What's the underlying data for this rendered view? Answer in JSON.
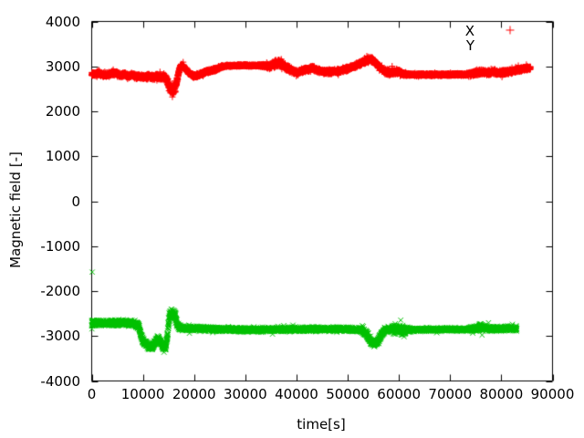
{
  "chart_data": {
    "type": "scatter",
    "title": "",
    "xlabel": "time[s]",
    "ylabel": "Magnetic field [-]",
    "xlim": [
      0,
      90000
    ],
    "ylim": [
      -4000,
      4000
    ],
    "x_ticks": [
      0,
      10000,
      20000,
      30000,
      40000,
      50000,
      60000,
      70000,
      80000,
      90000
    ],
    "y_ticks": [
      -4000,
      -3000,
      -2000,
      -1000,
      0,
      1000,
      2000,
      3000,
      4000
    ],
    "grid": false,
    "legend_position": "top-right",
    "axis_color": "#000000",
    "text_color": "#000000",
    "background_color": "#ffffff",
    "sample_interval_s": 15,
    "series": [
      {
        "name": "X",
        "marker": "plus",
        "color": "#ff0000",
        "legend_sample_visible": true,
        "t_start": 0,
        "t_end": 85700,
        "trend": [
          [
            0,
            2815
          ],
          [
            1200,
            2845
          ],
          [
            2500,
            2805
          ],
          [
            3600,
            2840
          ],
          [
            4800,
            2850
          ],
          [
            5600,
            2800
          ],
          [
            6400,
            2820
          ],
          [
            7200,
            2780
          ],
          [
            8000,
            2810
          ],
          [
            8800,
            2770
          ],
          [
            9600,
            2775
          ],
          [
            10400,
            2760
          ],
          [
            11200,
            2780
          ],
          [
            12000,
            2755
          ],
          [
            12800,
            2775
          ],
          [
            13600,
            2760
          ],
          [
            14200,
            2765
          ],
          [
            14700,
            2710
          ],
          [
            15100,
            2560
          ],
          [
            15500,
            2480
          ],
          [
            16000,
            2470
          ],
          [
            16400,
            2555
          ],
          [
            16800,
            2770
          ],
          [
            17400,
            3035
          ],
          [
            17900,
            3000
          ],
          [
            18500,
            2915
          ],
          [
            19300,
            2820
          ],
          [
            20000,
            2790
          ],
          [
            20800,
            2805
          ],
          [
            21900,
            2860
          ],
          [
            23000,
            2900
          ],
          [
            24400,
            2935
          ],
          [
            25500,
            2995
          ],
          [
            26500,
            3015
          ],
          [
            29000,
            3020
          ],
          [
            33000,
            3020
          ],
          [
            34500,
            3005
          ],
          [
            35500,
            3040
          ],
          [
            36400,
            3080
          ],
          [
            37200,
            3060
          ],
          [
            38200,
            2965
          ],
          [
            39200,
            2900
          ],
          [
            40200,
            2860
          ],
          [
            41200,
            2905
          ],
          [
            42200,
            2935
          ],
          [
            43300,
            2960
          ],
          [
            44300,
            2900
          ],
          [
            45500,
            2880
          ],
          [
            47000,
            2885
          ],
          [
            48500,
            2905
          ],
          [
            50000,
            2950
          ],
          [
            52000,
            3035
          ],
          [
            53800,
            3140
          ],
          [
            54600,
            3160
          ],
          [
            55400,
            3080
          ],
          [
            56400,
            2960
          ],
          [
            57400,
            2880
          ],
          [
            58400,
            2860
          ],
          [
            59400,
            2890
          ],
          [
            60400,
            2855
          ],
          [
            61400,
            2825
          ],
          [
            63000,
            2815
          ],
          [
            68000,
            2815
          ],
          [
            73000,
            2820
          ],
          [
            74500,
            2840
          ],
          [
            76000,
            2875
          ],
          [
            77500,
            2850
          ],
          [
            78500,
            2880
          ],
          [
            79500,
            2855
          ],
          [
            80500,
            2870
          ],
          [
            82000,
            2890
          ],
          [
            83500,
            2930
          ],
          [
            84500,
            2955
          ],
          [
            85700,
            2960
          ]
        ],
        "noise_amp": [
          [
            0,
            55
          ],
          [
            8500,
            55
          ],
          [
            9500,
            65
          ],
          [
            14000,
            70
          ],
          [
            14800,
            115
          ],
          [
            16400,
            115
          ],
          [
            16900,
            60
          ],
          [
            19000,
            55
          ],
          [
            24500,
            45
          ],
          [
            26000,
            25
          ],
          [
            33000,
            25
          ],
          [
            34500,
            70
          ],
          [
            36000,
            95
          ],
          [
            38000,
            80
          ],
          [
            40000,
            60
          ],
          [
            51000,
            55
          ],
          [
            53500,
            75
          ],
          [
            55500,
            70
          ],
          [
            57000,
            60
          ],
          [
            58000,
            75
          ],
          [
            60500,
            60
          ],
          [
            61800,
            35
          ],
          [
            63000,
            28
          ],
          [
            73000,
            28
          ],
          [
            74500,
            60
          ],
          [
            76000,
            70
          ],
          [
            78000,
            60
          ],
          [
            83000,
            60
          ],
          [
            85700,
            60
          ]
        ],
        "outliers": [
          [
            84900,
            3040
          ]
        ]
      },
      {
        "name": "Y",
        "marker": "cross",
        "color": "#00c000",
        "legend_sample_visible": false,
        "t_start": 0,
        "t_end": 83000,
        "trend": [
          [
            0,
            -2720
          ],
          [
            1200,
            -2700
          ],
          [
            2400,
            -2715
          ],
          [
            3600,
            -2700
          ],
          [
            4800,
            -2712
          ],
          [
            6000,
            -2702
          ],
          [
            7200,
            -2712
          ],
          [
            8500,
            -2728
          ],
          [
            9200,
            -2790
          ],
          [
            9800,
            -3060
          ],
          [
            10400,
            -3150
          ],
          [
            11000,
            -3220
          ],
          [
            11800,
            -3245
          ],
          [
            12400,
            -3140
          ],
          [
            12900,
            -3060
          ],
          [
            13400,
            -3130
          ],
          [
            13900,
            -3230
          ],
          [
            14400,
            -3265
          ],
          [
            14800,
            -3010
          ],
          [
            15100,
            -2600
          ],
          [
            15500,
            -2510
          ],
          [
            16000,
            -2490
          ],
          [
            16400,
            -2560
          ],
          [
            16700,
            -2750
          ],
          [
            17200,
            -2820
          ],
          [
            18000,
            -2830
          ],
          [
            20000,
            -2832
          ],
          [
            23000,
            -2845
          ],
          [
            26000,
            -2855
          ],
          [
            30000,
            -2866
          ],
          [
            34000,
            -2860
          ],
          [
            38000,
            -2852
          ],
          [
            42000,
            -2846
          ],
          [
            46000,
            -2850
          ],
          [
            50000,
            -2846
          ],
          [
            52500,
            -2862
          ],
          [
            53800,
            -2960
          ],
          [
            54500,
            -3130
          ],
          [
            55200,
            -3180
          ],
          [
            55800,
            -3120
          ],
          [
            56500,
            -2985
          ],
          [
            57200,
            -2885
          ],
          [
            58000,
            -2845
          ],
          [
            59000,
            -2862
          ],
          [
            60000,
            -2852
          ],
          [
            61000,
            -2866
          ],
          [
            63000,
            -2860
          ],
          [
            66000,
            -2856
          ],
          [
            70000,
            -2852
          ],
          [
            73000,
            -2856
          ],
          [
            74500,
            -2842
          ],
          [
            76000,
            -2805
          ],
          [
            77000,
            -2832
          ],
          [
            78500,
            -2842
          ],
          [
            80000,
            -2836
          ],
          [
            81500,
            -2826
          ],
          [
            83000,
            -2832
          ]
        ],
        "noise_amp": [
          [
            0,
            75
          ],
          [
            8500,
            75
          ],
          [
            9300,
            85
          ],
          [
            14000,
            90
          ],
          [
            14800,
            110
          ],
          [
            16400,
            110
          ],
          [
            16800,
            70
          ],
          [
            18000,
            62
          ],
          [
            25000,
            55
          ],
          [
            40000,
            55
          ],
          [
            51500,
            55
          ],
          [
            53800,
            80
          ],
          [
            56500,
            72
          ],
          [
            58000,
            58
          ],
          [
            59200,
            125
          ],
          [
            60800,
            125
          ],
          [
            61800,
            60
          ],
          [
            63000,
            42
          ],
          [
            73000,
            42
          ],
          [
            74500,
            70
          ],
          [
            76000,
            92
          ],
          [
            77500,
            62
          ],
          [
            80000,
            60
          ],
          [
            83000,
            68
          ]
        ],
        "outliers": [
          [
            100,
            -1578
          ]
        ]
      }
    ]
  }
}
